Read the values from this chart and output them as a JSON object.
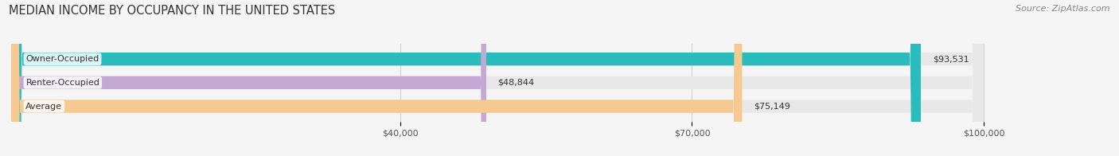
{
  "title": "MEDIAN INCOME BY OCCUPANCY IN THE UNITED STATES",
  "source": "Source: ZipAtlas.com",
  "categories": [
    "Owner-Occupied",
    "Renter-Occupied",
    "Average"
  ],
  "values": [
    93531,
    48844,
    75149
  ],
  "bar_colors": [
    "#2abcbc",
    "#c4a8d4",
    "#f5c990"
  ],
  "bar_labels": [
    "$93,531",
    "$48,844",
    "$75,149"
  ],
  "xlim_min": 0,
  "xlim_max": 100000,
  "xlim_display_max": 107000,
  "xticks": [
    40000,
    70000,
    100000
  ],
  "xticklabels": [
    "$40,000",
    "$70,000",
    "$100,000"
  ],
  "bar_height": 0.55,
  "background_color": "#f5f5f5",
  "bar_bg_color": "#e8e8e8",
  "title_fontsize": 10.5,
  "source_fontsize": 8,
  "label_fontsize": 8,
  "tick_fontsize": 8
}
